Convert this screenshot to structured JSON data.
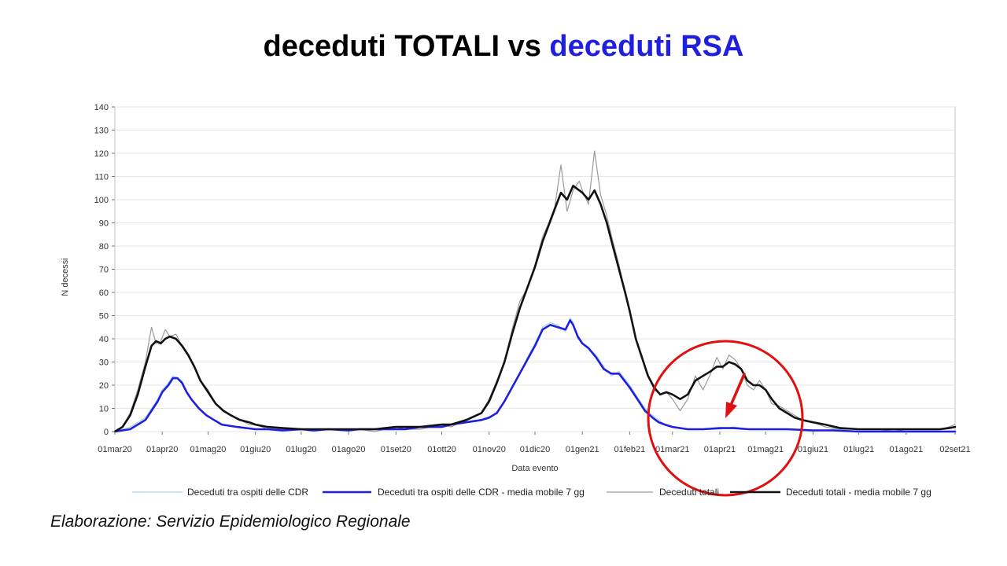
{
  "slide": {
    "title_part1": "deceduti TOTALI vs ",
    "title_part2": "deceduti RSA",
    "footer": "Elaborazione: Servizio Epidemiologico Regionale"
  },
  "colors": {
    "rsa_daily": "#a8d8ea",
    "rsa_avg": "#1f1fe0",
    "total_daily": "#9a9a9a",
    "total_avg": "#111111",
    "annotation": "#e01010",
    "grid": "#e6e6e6"
  },
  "chart_data": {
    "type": "line",
    "xlabel": "Data evento",
    "ylabel": "N decessi",
    "ylim": [
      0,
      140
    ],
    "yticks": [
      0,
      10,
      20,
      30,
      40,
      50,
      60,
      70,
      80,
      90,
      100,
      110,
      120,
      130,
      140
    ],
    "x_tick_labels": [
      "01mar20",
      "01apr20",
      "01mag20",
      "01giu20",
      "01lug20",
      "01ago20",
      "01set20",
      "01ott20",
      "01nov20",
      "01dic20",
      "01gen21",
      "01feb21",
      "01mar21",
      "01apr21",
      "01mag21",
      "01giu21",
      "01lug21",
      "01ago21",
      "02set21"
    ],
    "x_tick_days": [
      0,
      31,
      61,
      92,
      122,
      153,
      184,
      214,
      245,
      275,
      306,
      337,
      365,
      396,
      426,
      457,
      487,
      518,
      550
    ],
    "x_range_days": [
      0,
      550
    ],
    "grid": true,
    "legend_position": "bottom",
    "series": [
      {
        "name": "Deceduti tra ospiti delle CDR",
        "style": "daily",
        "x": [
          0,
          10,
          20,
          24,
          28,
          31,
          35,
          38,
          41,
          44,
          47,
          50,
          55,
          60,
          65,
          70,
          80,
          92,
          100,
          110,
          122,
          130,
          140,
          153,
          160,
          170,
          184,
          190,
          200,
          214,
          220,
          230,
          240,
          245,
          250,
          255,
          260,
          265,
          270,
          275,
          280,
          285,
          290,
          295,
          298,
          300,
          303,
          306,
          310,
          315,
          320,
          325,
          330,
          337,
          342,
          347,
          352,
          356,
          360,
          365,
          375,
          385,
          396,
          405,
          415,
          426,
          440,
          457,
          470,
          487,
          500,
          518,
          530,
          540,
          550
        ],
        "values": [
          0,
          2,
          6,
          10,
          14,
          18,
          21,
          24,
          23,
          22,
          17,
          14,
          10,
          7,
          5,
          3,
          2,
          1,
          1,
          0,
          1,
          0,
          1,
          0,
          1,
          1,
          1,
          1,
          2,
          2,
          3,
          4,
          5,
          6,
          8,
          13,
          19,
          25,
          32,
          38,
          45,
          47,
          46,
          43,
          49,
          47,
          40,
          38,
          36,
          33,
          28,
          24,
          26,
          20,
          15,
          10,
          7,
          5,
          3,
          2,
          1,
          1,
          1,
          2,
          1,
          1,
          1,
          0,
          1,
          0,
          0,
          0,
          0,
          0,
          0
        ]
      },
      {
        "name": "Deceduti tra ospiti delle CDR - media mobile 7 gg",
        "style": "avg",
        "x": [
          0,
          10,
          20,
          24,
          28,
          31,
          35,
          38,
          41,
          44,
          47,
          50,
          55,
          60,
          65,
          70,
          80,
          92,
          100,
          110,
          122,
          130,
          140,
          153,
          160,
          170,
          184,
          190,
          200,
          214,
          220,
          230,
          240,
          245,
          250,
          255,
          260,
          265,
          270,
          275,
          280,
          285,
          290,
          295,
          298,
          300,
          303,
          306,
          310,
          315,
          320,
          325,
          330,
          337,
          342,
          347,
          352,
          356,
          360,
          365,
          375,
          385,
          396,
          405,
          415,
          426,
          440,
          457,
          470,
          487,
          500,
          518,
          530,
          540,
          550
        ],
        "values": [
          0,
          1,
          5,
          9,
          13,
          17,
          20,
          23,
          23,
          21,
          17,
          14,
          10,
          7,
          5,
          3,
          2,
          1,
          1,
          0.5,
          1,
          0.5,
          1,
          0.5,
          1,
          1,
          1,
          1,
          2,
          2,
          3,
          4,
          5,
          6,
          8,
          13,
          19,
          25,
          31,
          37,
          44,
          46,
          45,
          44,
          48,
          46,
          41,
          38,
          36,
          32,
          27,
          25,
          25,
          19,
          14,
          9,
          6,
          4,
          3,
          2,
          1,
          1,
          1.5,
          1.5,
          1,
          1,
          1,
          0.5,
          0.5,
          0,
          0,
          0,
          0,
          0,
          0
        ]
      },
      {
        "name": "Deceduti totali",
        "style": "daily",
        "x": [
          0,
          5,
          10,
          15,
          20,
          24,
          27,
          30,
          33,
          36,
          40,
          44,
          48,
          52,
          56,
          61,
          66,
          71,
          76,
          82,
          88,
          92,
          100,
          110,
          122,
          130,
          140,
          153,
          160,
          170,
          184,
          190,
          200,
          214,
          220,
          230,
          240,
          245,
          250,
          255,
          260,
          265,
          270,
          275,
          280,
          284,
          288,
          292,
          296,
          300,
          304,
          306,
          310,
          314,
          318,
          322,
          326,
          330,
          334,
          337,
          341,
          345,
          349,
          353,
          357,
          361,
          365,
          370,
          375,
          380,
          385,
          390,
          394,
          398,
          402,
          406,
          410,
          414,
          418,
          422,
          426,
          430,
          435,
          440,
          445,
          450,
          457,
          465,
          475,
          487,
          500,
          510,
          518,
          530,
          540,
          546,
          550
        ],
        "values": [
          0,
          2,
          8,
          18,
          30,
          45,
          38,
          39,
          44,
          41,
          42,
          37,
          33,
          28,
          22,
          18,
          12,
          9,
          7,
          5,
          3,
          3,
          1,
          1,
          1,
          0,
          1,
          1,
          1,
          0,
          2,
          1,
          1,
          3,
          2,
          5,
          8,
          14,
          22,
          30,
          44,
          56,
          62,
          72,
          84,
          90,
          97,
          115,
          95,
          104,
          108,
          104,
          98,
          121,
          102,
          93,
          82,
          72,
          60,
          51,
          40,
          33,
          24,
          18,
          16,
          17,
          14,
          9,
          14,
          24,
          18,
          25,
          32,
          27,
          33,
          31,
          27,
          20,
          18,
          22,
          18,
          12,
          11,
          9,
          7,
          5,
          4,
          2,
          1,
          1,
          1,
          0,
          1,
          1,
          1,
          2,
          3
        ]
      },
      {
        "name": "Deceduti totali - media mobile 7 gg",
        "style": "avg",
        "x": [
          0,
          5,
          10,
          15,
          20,
          24,
          27,
          30,
          33,
          36,
          40,
          44,
          48,
          52,
          56,
          61,
          66,
          71,
          76,
          82,
          88,
          92,
          100,
          110,
          122,
          130,
          140,
          153,
          160,
          170,
          184,
          190,
          200,
          214,
          220,
          230,
          240,
          245,
          250,
          255,
          260,
          265,
          270,
          275,
          280,
          284,
          288,
          292,
          296,
          300,
          304,
          306,
          310,
          314,
          318,
          322,
          326,
          330,
          334,
          337,
          341,
          345,
          349,
          353,
          357,
          361,
          365,
          370,
          375,
          380,
          385,
          390,
          394,
          398,
          402,
          406,
          410,
          414,
          418,
          422,
          426,
          430,
          435,
          440,
          445,
          450,
          457,
          465,
          475,
          487,
          500,
          510,
          518,
          530,
          540,
          546,
          550
        ],
        "values": [
          0,
          2,
          7,
          16,
          28,
          37,
          39,
          38,
          40,
          41,
          40,
          37,
          33,
          28,
          22,
          17,
          12,
          9,
          7,
          5,
          4,
          3,
          2,
          1.5,
          1,
          1,
          1,
          1,
          1,
          1,
          2,
          2,
          2,
          3,
          3,
          5,
          8,
          13,
          21,
          30,
          42,
          53,
          62,
          71,
          82,
          89,
          96,
          103,
          100,
          106,
          104,
          103,
          100,
          104,
          98,
          90,
          80,
          70,
          60,
          52,
          40,
          32,
          24,
          19,
          16,
          17,
          16,
          14,
          16,
          22,
          24,
          26,
          28,
          28,
          30,
          29,
          27,
          22,
          20,
          20,
          18,
          14,
          10,
          8,
          6,
          5,
          4,
          3,
          1.5,
          1,
          1,
          1,
          1,
          1,
          1,
          1.5,
          2
        ]
      }
    ]
  }
}
